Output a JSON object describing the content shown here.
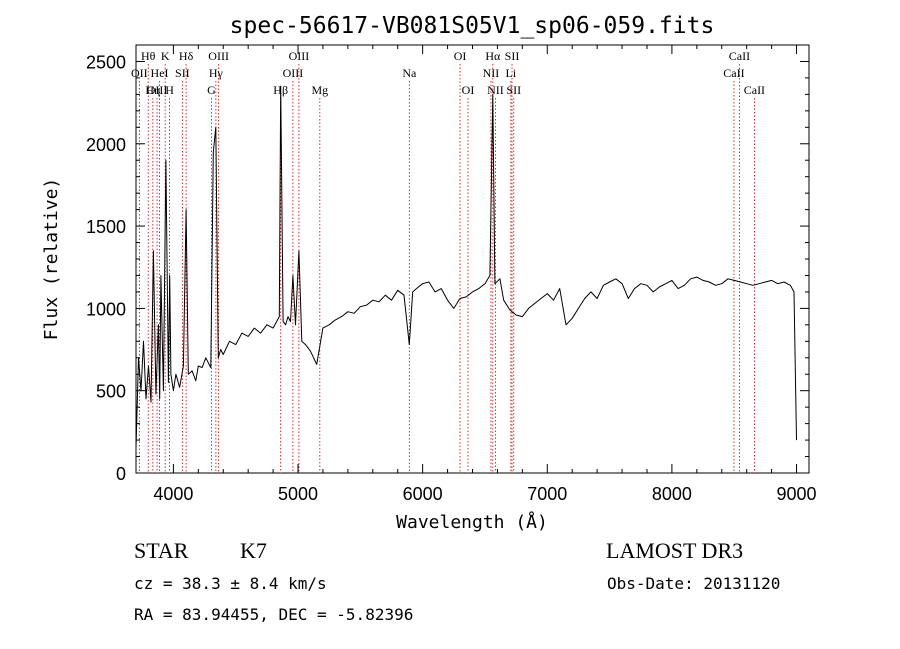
{
  "chart_data": {
    "type": "line",
    "title": "spec-56617-VB081S05V1_sp06-059.fits",
    "xlabel": "Wavelength (Å)",
    "ylabel": "Flux (relative)",
    "xlim": [
      3700,
      9100
    ],
    "ylim": [
      0,
      2600
    ],
    "xticks": [
      4000,
      5000,
      6000,
      7000,
      8000,
      9000
    ],
    "yticks": [
      0,
      500,
      1000,
      1500,
      2000,
      2500
    ],
    "grid": false,
    "line_color": "#000000",
    "marker_color": "#cc0000",
    "series": [
      {
        "x": [
          3700,
          3720,
          3740,
          3760,
          3780,
          3800,
          3820,
          3840,
          3860,
          3880,
          3890,
          3900,
          3920,
          3940,
          3960,
          3970,
          3980,
          4000,
          4020,
          4050,
          4080,
          4102,
          4120,
          4150,
          4180,
          4200,
          4230,
          4260,
          4300,
          4320,
          4340,
          4360,
          4380,
          4400,
          4450,
          4500,
          4550,
          4600,
          4650,
          4700,
          4750,
          4800,
          4850,
          4861,
          4880,
          4900,
          4920,
          4940,
          4959,
          4980,
          5007,
          5030,
          5060,
          5100,
          5150,
          5200,
          5250,
          5300,
          5350,
          5400,
          5450,
          5500,
          5550,
          5600,
          5650,
          5700,
          5750,
          5800,
          5850,
          5893,
          5920,
          5950,
          6000,
          6050,
          6100,
          6150,
          6200,
          6250,
          6300,
          6350,
          6400,
          6450,
          6500,
          6540,
          6563,
          6580,
          6620,
          6650,
          6700,
          6750,
          6800,
          6850,
          6900,
          6950,
          7000,
          7050,
          7100,
          7150,
          7200,
          7250,
          7300,
          7350,
          7400,
          7450,
          7500,
          7550,
          7600,
          7650,
          7700,
          7750,
          7800,
          7850,
          7900,
          7950,
          8000,
          8050,
          8100,
          8150,
          8200,
          8250,
          8300,
          8350,
          8400,
          8450,
          8500,
          8550,
          8600,
          8650,
          8700,
          8750,
          8800,
          8850,
          8900,
          8950,
          8980,
          9000
        ],
        "y": [
          150,
          700,
          500,
          800,
          450,
          650,
          430,
          1350,
          480,
          900,
          450,
          1200,
          500,
          1900,
          550,
          1200,
          600,
          500,
          600,
          520,
          650,
          1600,
          600,
          620,
          560,
          650,
          640,
          700,
          640,
          1950,
          2100,
          700,
          750,
          720,
          800,
          780,
          850,
          830,
          880,
          850,
          900,
          880,
          950,
          2350,
          920,
          900,
          950,
          920,
          1200,
          900,
          1350,
          800,
          780,
          740,
          660,
          880,
          900,
          930,
          950,
          980,
          970,
          1010,
          1020,
          1050,
          1040,
          1080,
          1050,
          1110,
          1080,
          780,
          1100,
          1120,
          1150,
          1160,
          1100,
          1120,
          1050,
          1000,
          1060,
          1070,
          1100,
          1120,
          1150,
          1200,
          2300,
          1150,
          1180,
          1050,
          990,
          960,
          950,
          1000,
          1030,
          1060,
          1090,
          1050,
          1120,
          900,
          940,
          1000,
          1060,
          1100,
          1060,
          1140,
          1160,
          1180,
          1150,
          1060,
          1120,
          1150,
          1140,
          1100,
          1130,
          1150,
          1170,
          1120,
          1140,
          1180,
          1190,
          1170,
          1160,
          1140,
          1150,
          1180,
          1170,
          1160,
          1150,
          1140,
          1150,
          1160,
          1170,
          1150,
          1160,
          1140,
          1100,
          200
        ]
      }
    ],
    "spectral_lines": [
      {
        "label": "Hθ",
        "x": 3798,
        "row": 0
      },
      {
        "label": "OII",
        "x": 3727,
        "row": 1
      },
      {
        "label": "OIII",
        "x": 3869,
        "row": 2
      },
      {
        "label": "HeI",
        "x": 3889,
        "row": 1
      },
      {
        "label": "Hη",
        "x": 3835,
        "row": 2
      },
      {
        "label": "K",
        "x": 3934,
        "row": 0
      },
      {
        "label": "SII",
        "x": 4072,
        "row": 1
      },
      {
        "label": "H",
        "x": 3969,
        "row": 2
      },
      {
        "label": "Hδ",
        "x": 4102,
        "row": 0
      },
      {
        "label": "OIII",
        "x": 4363,
        "row": 0
      },
      {
        "label": "Hγ",
        "x": 4341,
        "row": 1
      },
      {
        "label": "G",
        "x": 4305,
        "row": 2
      },
      {
        "label": "Hβ",
        "x": 4861,
        "row": 2
      },
      {
        "label": "OIII",
        "x": 5007,
        "row": 0
      },
      {
        "label": "OIII",
        "x": 4959,
        "row": 1
      },
      {
        "label": "Mg",
        "x": 5175,
        "row": 2
      },
      {
        "label": "Na",
        "x": 5893,
        "row": 1
      },
      {
        "label": "OI",
        "x": 6300,
        "row": 0
      },
      {
        "label": "OI",
        "x": 6364,
        "row": 2
      },
      {
        "label": "Hα",
        "x": 6563,
        "row": 0
      },
      {
        "label": "SII",
        "x": 6717,
        "row": 0
      },
      {
        "label": "NII",
        "x": 6548,
        "row": 1
      },
      {
        "label": "Li",
        "x": 6708,
        "row": 1
      },
      {
        "label": "NII",
        "x": 6584,
        "row": 2
      },
      {
        "label": "SII",
        "x": 6731,
        "row": 2
      },
      {
        "label": "CaII",
        "x": 8542,
        "row": 0
      },
      {
        "label": "CaII",
        "x": 8498,
        "row": 1
      },
      {
        "label": "CaII",
        "x": 8662,
        "row": 2
      }
    ]
  },
  "footer": {
    "object_class": "STAR",
    "subclass": "K7",
    "survey": "LAMOST DR3",
    "redshift": "cz = 38.3 ± 8.4 km/s",
    "obs_date": "Obs-Date: 20131120",
    "coords": "RA =  83.94455, DEC =  -5.82396"
  }
}
